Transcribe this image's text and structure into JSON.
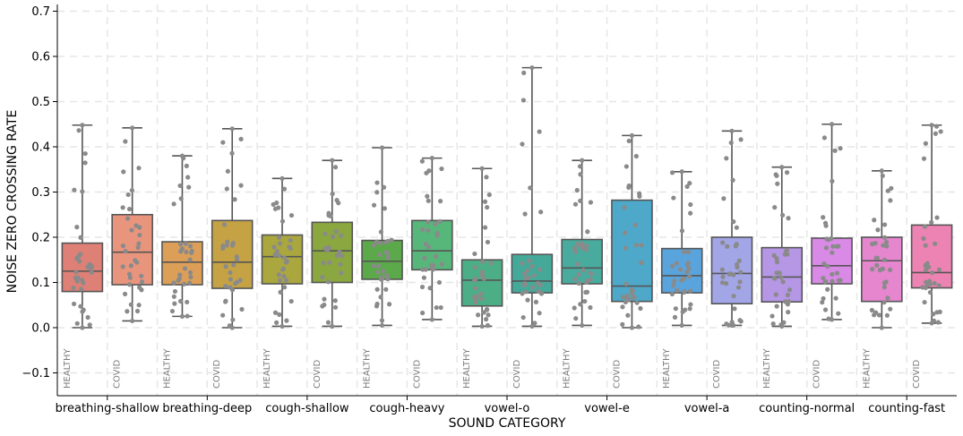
{
  "chart_data": {
    "type": "box",
    "xlabel": "SOUND CATEGORY",
    "ylabel": "NOISE ZERO CROSSING RATE",
    "ylim": [
      -0.15,
      0.71
    ],
    "yticks": [
      -0.1,
      0.0,
      0.1,
      0.2,
      0.3,
      0.4,
      0.5,
      0.6,
      0.7
    ],
    "grid": true,
    "categories": [
      "breathing-shallow",
      "breathing-deep",
      "cough-shallow",
      "cough-heavy",
      "vowel-o",
      "vowel-e",
      "vowel-a",
      "counting-normal",
      "counting-fast"
    ],
    "group_labels": [
      "HEALTHY",
      "COVID"
    ],
    "boxes": [
      {
        "category": "breathing-shallow",
        "group": "HEALTHY",
        "color": "#de8076",
        "min": 0.0,
        "q1": 0.08,
        "median": 0.125,
        "q3": 0.187,
        "max": 0.448
      },
      {
        "category": "breathing-shallow",
        "group": "COVID",
        "color": "#e9957e",
        "min": 0.015,
        "q1": 0.095,
        "median": 0.167,
        "q3": 0.25,
        "max": 0.442
      },
      {
        "category": "breathing-deep",
        "group": "HEALTHY",
        "color": "#dd9f58",
        "min": 0.025,
        "q1": 0.095,
        "median": 0.145,
        "q3": 0.19,
        "max": 0.38
      },
      {
        "category": "breathing-deep",
        "group": "COVID",
        "color": "#c5a244",
        "min": 0.0,
        "q1": 0.087,
        "median": 0.145,
        "q3": 0.237,
        "max": 0.44
      },
      {
        "category": "cough-shallow",
        "group": "HEALTHY",
        "color": "#aaa73f",
        "min": 0.003,
        "q1": 0.097,
        "median": 0.157,
        "q3": 0.205,
        "max": 0.33
      },
      {
        "category": "cough-shallow",
        "group": "COVID",
        "color": "#8ba73f",
        "min": 0.003,
        "q1": 0.1,
        "median": 0.17,
        "q3": 0.233,
        "max": 0.37
      },
      {
        "category": "cough-heavy",
        "group": "HEALTHY",
        "color": "#5ba94a",
        "min": 0.005,
        "q1": 0.107,
        "median": 0.147,
        "q3": 0.193,
        "max": 0.398
      },
      {
        "category": "cough-heavy",
        "group": "COVID",
        "color": "#57b77b",
        "min": 0.018,
        "q1": 0.128,
        "median": 0.17,
        "q3": 0.237,
        "max": 0.375
      },
      {
        "category": "vowel-o",
        "group": "HEALTHY",
        "color": "#4cae86",
        "min": 0.003,
        "q1": 0.048,
        "median": 0.105,
        "q3": 0.15,
        "max": 0.352
      },
      {
        "category": "vowel-o",
        "group": "COVID",
        "color": "#45a99a",
        "min": 0.003,
        "q1": 0.077,
        "median": 0.103,
        "q3": 0.162,
        "max": 0.575
      },
      {
        "category": "vowel-e",
        "group": "HEALTHY",
        "color": "#49ab9e",
        "min": 0.005,
        "q1": 0.097,
        "median": 0.132,
        "q3": 0.195,
        "max": 0.37
      },
      {
        "category": "vowel-e",
        "group": "COVID",
        "color": "#4ea8c9",
        "min": 0.0,
        "q1": 0.058,
        "median": 0.092,
        "q3": 0.282,
        "max": 0.425
      },
      {
        "category": "vowel-a",
        "group": "HEALTHY",
        "color": "#5aa4dd",
        "min": 0.005,
        "q1": 0.077,
        "median": 0.115,
        "q3": 0.175,
        "max": 0.345
      },
      {
        "category": "vowel-a",
        "group": "COVID",
        "color": "#a2a6e6",
        "min": 0.005,
        "q1": 0.053,
        "median": 0.12,
        "q3": 0.2,
        "max": 0.435
      },
      {
        "category": "counting-normal",
        "group": "HEALTHY",
        "color": "#b597e5",
        "min": 0.003,
        "q1": 0.057,
        "median": 0.112,
        "q3": 0.177,
        "max": 0.355
      },
      {
        "category": "counting-normal",
        "group": "COVID",
        "color": "#d989e6",
        "min": 0.018,
        "q1": 0.097,
        "median": 0.137,
        "q3": 0.198,
        "max": 0.45
      },
      {
        "category": "counting-fast",
        "group": "HEALTHY",
        "color": "#e586cf",
        "min": 0.0,
        "q1": 0.058,
        "median": 0.148,
        "q3": 0.2,
        "max": 0.347
      },
      {
        "category": "counting-fast",
        "group": "COVID",
        "color": "#ec83b2",
        "min": 0.01,
        "q1": 0.088,
        "median": 0.122,
        "q3": 0.227,
        "max": 0.448
      }
    ],
    "point_color": "#8a8a8a",
    "box_edge_color": "#555555"
  }
}
